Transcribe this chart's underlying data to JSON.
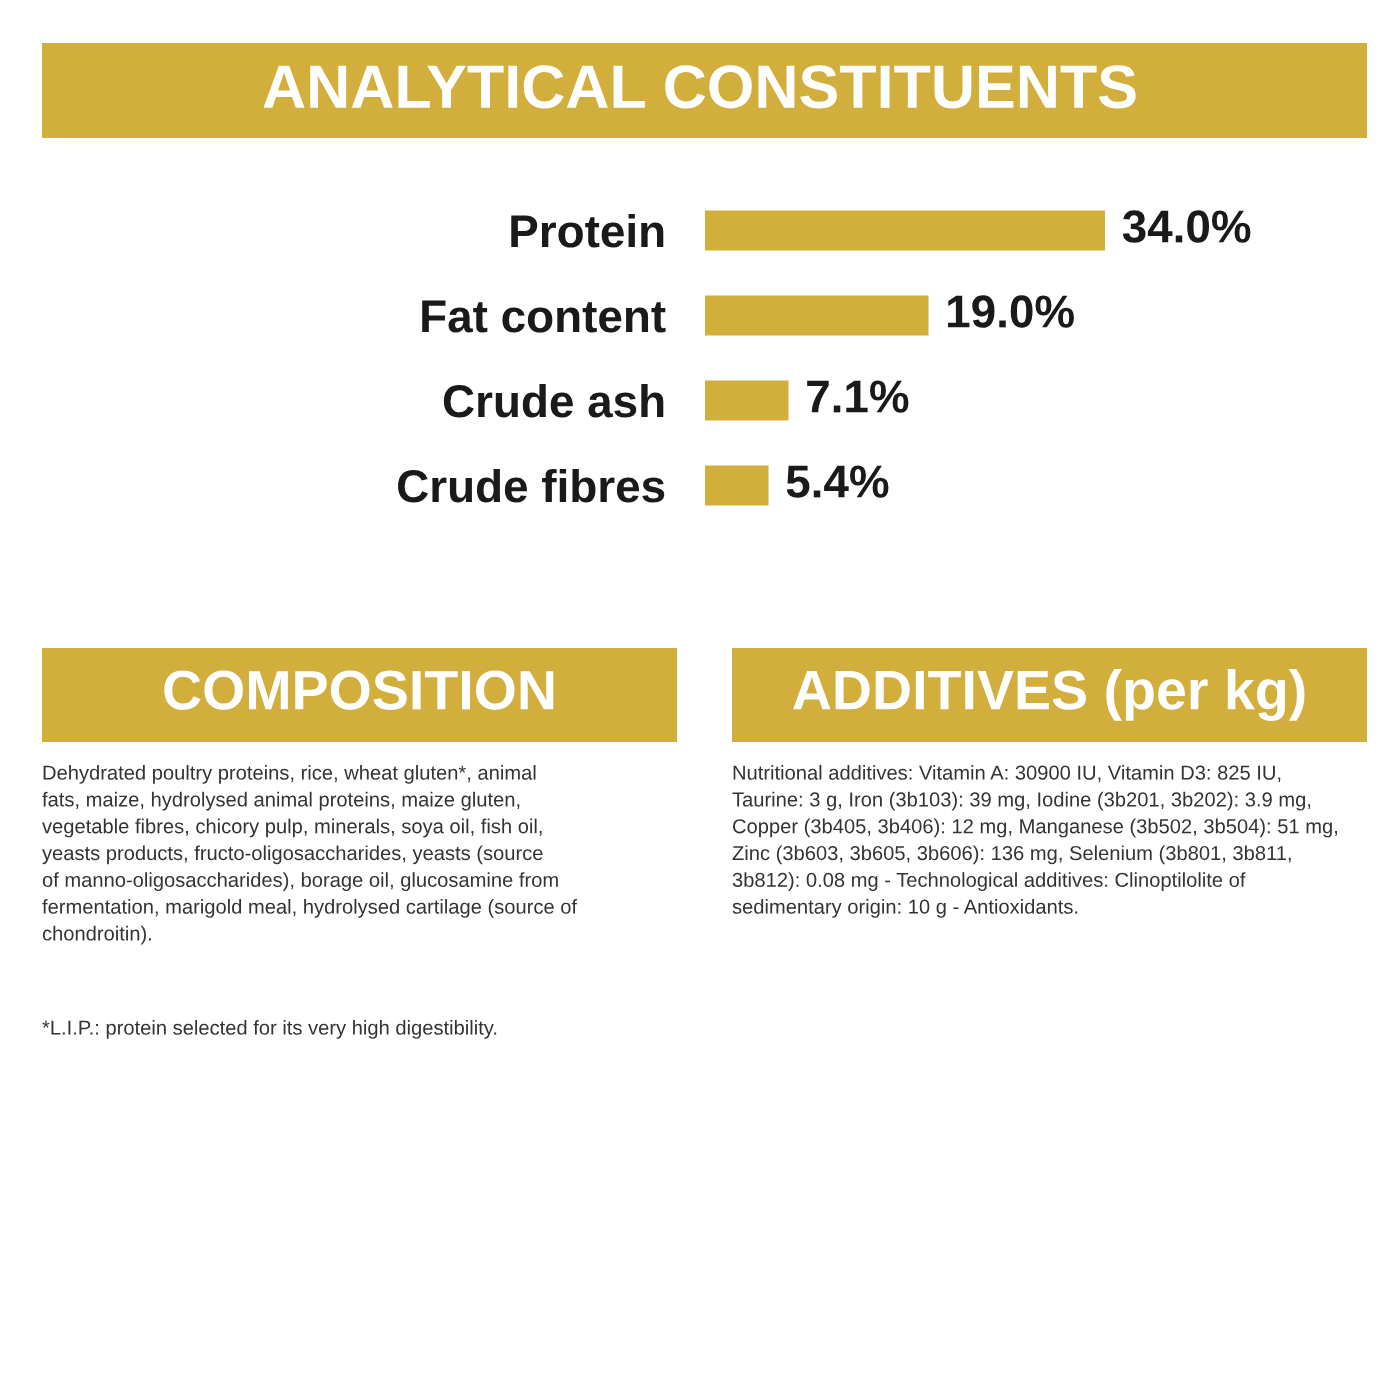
{
  "chart_data": {
    "type": "bar",
    "orientation": "horizontal",
    "tick_labels": "y",
    "title": "ANALYTICAL CONSTITUENTS",
    "categories": [
      "Protein",
      "Fat content",
      "Crude ash",
      "Crude fibres"
    ],
    "values": [
      34.0,
      19.0,
      7.1,
      5.4
    ],
    "value_labels": [
      "34.0%",
      "19.0%",
      "7.1%",
      "5.4%"
    ],
    "color": "#d2ae3d",
    "annotations": [
      "COMPOSITION",
      "Dehydrated poultry proteins, rice, wheat gluten*, animal\nfats, maize, hydrolysed animal proteins, maize gluten,\nvegetable fibres, chicory pulp, minerals, soya oil, fish oil,\nyeasts products, fructo-oligosaccharides, yeasts (source\nof manno-oligosaccharides), borage oil, glucosamine from\nfermentation, marigold meal, hydrolysed cartilage (source of\nchondroitin).",
      "*L.I.P.: protein selected for its very high digestibility.",
      "ADDITIVES (per kg)",
      "Nutritional additives: Vitamin A: 30900 IU, Vitamin D3: 825 IU,\nTaurine: 3 g, Iron (3b103): 39 mg, Iodine (3b201, 3b202): 3.9 mg,\nCopper (3b405, 3b406): 12 mg, Manganese (3b502, 3b504): 51 mg,\nZinc (3b603, 3b605, 3b606): 136 mg, Selenium (3b801, 3b811,\n3b812): 0.08 mg - Technological additives: Clinoptilolite of\nsedimentary origin: 10 g - Antioxidants."
    ],
    "grid": false,
    "legend": false
  }
}
